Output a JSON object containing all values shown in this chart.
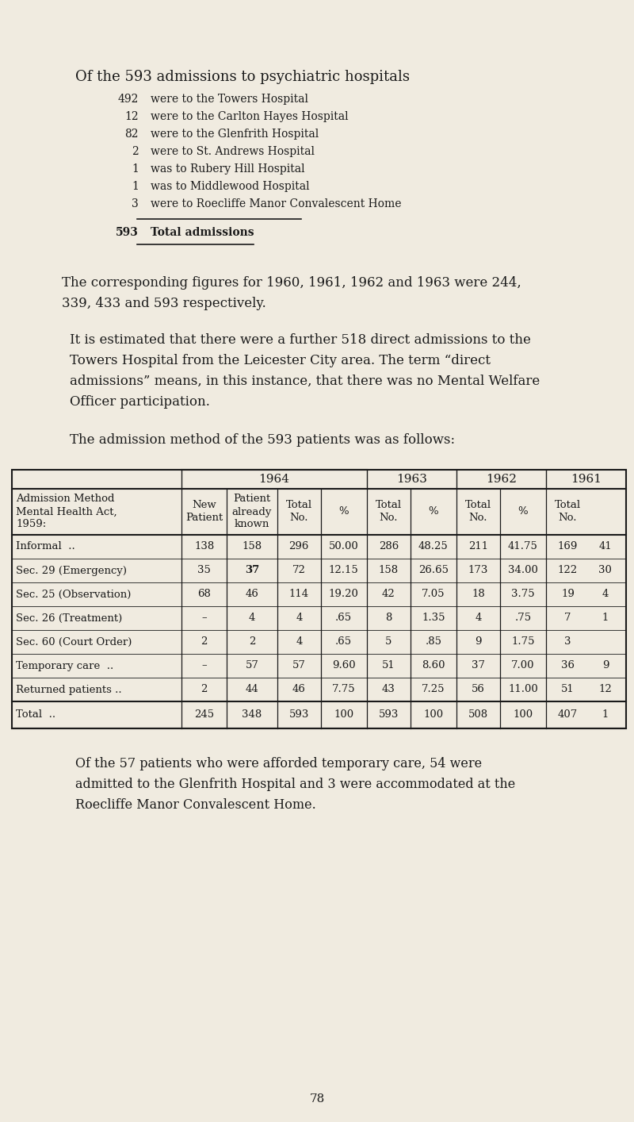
{
  "bg_color": "#f0ebe0",
  "text_color": "#1a1a1a",
  "page_number": "78",
  "title": "Of the 593 admissions to psychiatric hospitals",
  "hospital_list": [
    {
      "num": "492",
      "text": "were to the Towers Hospital"
    },
    {
      "num": "12",
      "text": "were to the Carlton Hayes Hospital"
    },
    {
      "num": "82",
      "text": "were to the Glenfrith Hospital"
    },
    {
      "num": "2",
      "text": "were to St. Andrews Hospital"
    },
    {
      "num": "1",
      "text": "was to Rubery Hill Hospital"
    },
    {
      "num": "1",
      "text": "was to Middlewood Hospital"
    },
    {
      "num": "3",
      "text": "were to Roecliffe Manor Convalescent Home"
    }
  ],
  "para1_line1": "The corresponding figures for 1960, 1961, 1962 and 1963 were 244,",
  "para1_line2": "339, 433 and 593 respectively.",
  "para2_lines": [
    "It is estimated that there were a further 518 direct admissions to the",
    "Towers Hospital from the Leicester City area. The term “direct",
    "admissions” means, in this instance, that there was no Mental Welfare",
    "Officer participation."
  ],
  "para3": "The admission method of the 593 patients was as follows:",
  "col_widths": [
    1.95,
    0.52,
    0.58,
    0.5,
    0.53,
    0.5,
    0.53,
    0.5,
    0.53,
    0.5,
    0.42
  ],
  "table_rows": [
    [
      "Informal  ..",
      "138",
      "158",
      "296",
      "50.00",
      "286",
      "48.25",
      "211",
      "41.75",
      "169",
      "41"
    ],
    [
      "Sec. 29 (Emergency)",
      "35",
      "37",
      "72",
      "12.15",
      "158",
      "26.65",
      "173",
      "34.00",
      "122",
      "30"
    ],
    [
      "Sec. 25 (Observation)",
      "68",
      "46",
      "114",
      "19.20",
      "42",
      "7.05",
      "18",
      "3.75",
      "19",
      "4"
    ],
    [
      "Sec. 26 (Treatment)",
      "–",
      "4",
      "4",
      ".65",
      "8",
      "1.35",
      "4",
      ".75",
      "7",
      "1"
    ],
    [
      "Sec. 60 (Court Order)",
      "2",
      "2",
      "4",
      ".65",
      "5",
      ".85",
      "9",
      "1.75",
      "3",
      ""
    ],
    [
      "Temporary care  ..",
      "–",
      "57",
      "57",
      "9.60",
      "51",
      "8.60",
      "37",
      "7.00",
      "36",
      "9"
    ],
    [
      "Returned patients ..",
      "2",
      "44",
      "46",
      "7.75",
      "43",
      "7.25",
      "56",
      "11.00",
      "51",
      "12"
    ]
  ],
  "table_total_row": [
    "Total  ..",
    "245",
    "348",
    "593",
    "100",
    "593",
    "100",
    "508",
    "100",
    "407",
    "1"
  ],
  "bold_cells": [
    [
      1,
      2
    ]
  ],
  "para4_lines": [
    "Of the 57 patients who were afforded temporary care, 54 were",
    "admitted to the Glenfrith Hospital and 3 were accommodated at the",
    "Roecliffe Manor Convalescent Home."
  ]
}
